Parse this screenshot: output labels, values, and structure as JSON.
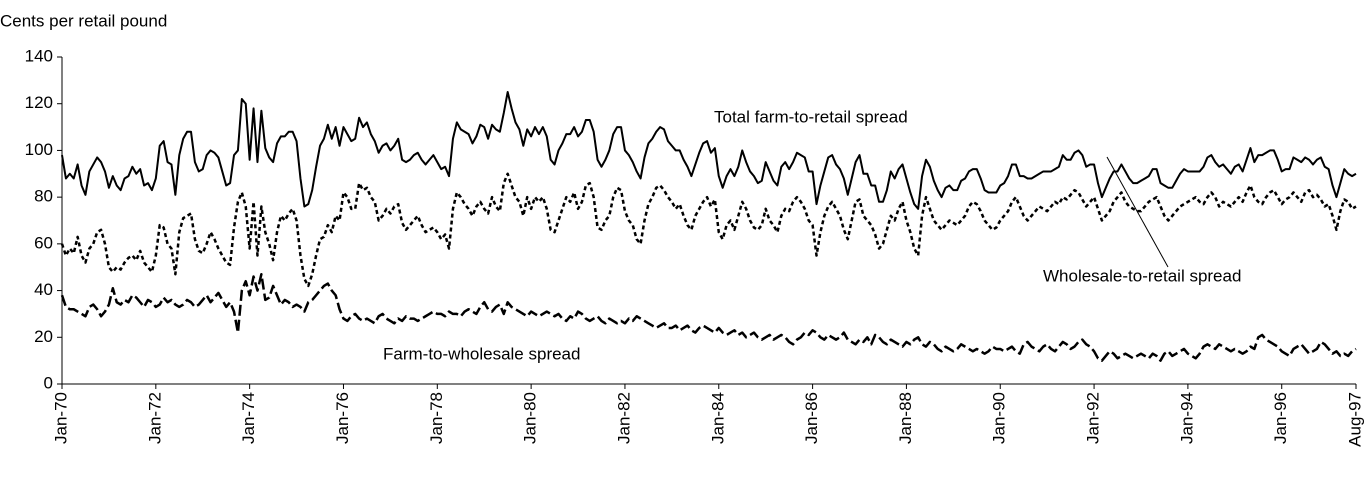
{
  "chart_data": {
    "type": "line",
    "y_label": "Cents per retail pound",
    "categories": [
      "Jan-70",
      null,
      null,
      null,
      null,
      null,
      null,
      null,
      null,
      null,
      null,
      null,
      null,
      null,
      null,
      null,
      null,
      null,
      null,
      null,
      null,
      null,
      null,
      null,
      "Jan-72",
      null,
      null,
      null,
      null,
      null,
      null,
      null,
      null,
      null,
      null,
      null,
      null,
      null,
      null,
      null,
      null,
      null,
      null,
      null,
      null,
      null,
      null,
      null,
      "Jan-74",
      null,
      null,
      null,
      null,
      null,
      null,
      null,
      null,
      null,
      null,
      null,
      null,
      null,
      null,
      null,
      null,
      null,
      null,
      null,
      null,
      null,
      null,
      null,
      "Jan-76",
      null,
      null,
      null,
      null,
      null,
      null,
      null,
      null,
      null,
      null,
      null,
      null,
      null,
      null,
      null,
      null,
      null,
      null,
      null,
      null,
      null,
      null,
      null,
      "Jan-78",
      null,
      null,
      null,
      null,
      null,
      null,
      null,
      null,
      null,
      null,
      null,
      null,
      null,
      null,
      null,
      null,
      null,
      null,
      null,
      null,
      null,
      null,
      null,
      "Jan-80",
      null,
      null,
      null,
      null,
      null,
      null,
      null,
      null,
      null,
      null,
      null,
      null,
      null,
      null,
      null,
      null,
      null,
      null,
      null,
      null,
      null,
      null,
      null,
      "Jan-82",
      null,
      null,
      null,
      null,
      null,
      null,
      null,
      null,
      null,
      null,
      null,
      null,
      null,
      null,
      null,
      null,
      null,
      null,
      null,
      null,
      null,
      null,
      null,
      "Jan-84",
      null,
      null,
      null,
      null,
      null,
      null,
      null,
      null,
      null,
      null,
      null,
      null,
      null,
      null,
      null,
      null,
      null,
      null,
      null,
      null,
      null,
      null,
      null,
      "Jan-86",
      null,
      null,
      null,
      null,
      null,
      null,
      null,
      null,
      null,
      null,
      null,
      null,
      null,
      null,
      null,
      null,
      null,
      null,
      null,
      null,
      null,
      null,
      null,
      "Jan-88",
      null,
      null,
      null,
      null,
      null,
      null,
      null,
      null,
      null,
      null,
      null,
      null,
      null,
      null,
      null,
      null,
      null,
      null,
      null,
      null,
      null,
      null,
      null,
      "Jan-90",
      null,
      null,
      null,
      null,
      null,
      null,
      null,
      null,
      null,
      null,
      null,
      null,
      null,
      null,
      null,
      null,
      null,
      null,
      null,
      null,
      null,
      null,
      null,
      "Jan-92",
      null,
      null,
      null,
      null,
      null,
      null,
      null,
      null,
      null,
      null,
      null,
      null,
      null,
      null,
      null,
      null,
      null,
      null,
      null,
      null,
      null,
      null,
      null,
      "Jan-94",
      null,
      null,
      null,
      null,
      null,
      null,
      null,
      null,
      null,
      null,
      null,
      null,
      null,
      null,
      null,
      null,
      null,
      null,
      null,
      null,
      null,
      null,
      null,
      "Jan-96",
      null,
      null,
      null,
      null,
      null,
      null,
      null,
      null,
      null,
      null,
      null,
      null,
      null,
      null,
      null,
      null,
      null,
      null,
      "Aug-97"
    ],
    "ylim": [
      0,
      140
    ],
    "yticks": [
      0,
      20,
      40,
      60,
      80,
      100,
      120,
      140
    ],
    "series": [
      {
        "name": "Total farm-to-retail spread",
        "color": "#000000",
        "style": "solid",
        "values": [
          98,
          88,
          90,
          88,
          94,
          85,
          81,
          91,
          94,
          97,
          95,
          91,
          84,
          89,
          85,
          83,
          88,
          89,
          93,
          90,
          92,
          85,
          86,
          83,
          88,
          102,
          104,
          95,
          94,
          81,
          98,
          105,
          108,
          108,
          95,
          91,
          92,
          98,
          100,
          99,
          97,
          91,
          85,
          86,
          98,
          100,
          122,
          120,
          96,
          118,
          95,
          117,
          101,
          97,
          95,
          103,
          106,
          106,
          108,
          108,
          104,
          88,
          76,
          77,
          83,
          93,
          102,
          105,
          111,
          105,
          110,
          102,
          110,
          107,
          104,
          105,
          114,
          110,
          112,
          107,
          104,
          99,
          102,
          103,
          100,
          102,
          105,
          96,
          95,
          96,
          98,
          99,
          96,
          94,
          96,
          98,
          95,
          92,
          93,
          89,
          105,
          112,
          109,
          108,
          107,
          103,
          106,
          111,
          110,
          105,
          111,
          109,
          108,
          116,
          125,
          118,
          112,
          109,
          102,
          109,
          106,
          110,
          107,
          110,
          106,
          96,
          94,
          100,
          103,
          107,
          107,
          110,
          106,
          108,
          113,
          113,
          108,
          96,
          93,
          96,
          100,
          107,
          110,
          110,
          100,
          98,
          95,
          91,
          88,
          97,
          103,
          105,
          108,
          110,
          109,
          104,
          102,
          100,
          100,
          96,
          93,
          89,
          94,
          99,
          103,
          104,
          99,
          101,
          89,
          84,
          89,
          92,
          89,
          93,
          100,
          95,
          91,
          89,
          86,
          87,
          95,
          91,
          87,
          85,
          93,
          95,
          92,
          95,
          99,
          98,
          97,
          91,
          91,
          77,
          85,
          91,
          97,
          98,
          94,
          92,
          88,
          81,
          88,
          95,
          98,
          90,
          90,
          85,
          85,
          78,
          78,
          83,
          91,
          88,
          92,
          94,
          88,
          82,
          77,
          75,
          89,
          96,
          93,
          87,
          83,
          80,
          84,
          85,
          83,
          83,
          87,
          88,
          91,
          92,
          92,
          88,
          83,
          82,
          82,
          82,
          85,
          86,
          89,
          94,
          94,
          89,
          89,
          88,
          88,
          89,
          90,
          91,
          91,
          91,
          92,
          93,
          98,
          96,
          96,
          99,
          100,
          98,
          93,
          94,
          94,
          86,
          80,
          84,
          88,
          91,
          91,
          94,
          91,
          88,
          86,
          86,
          87,
          88,
          89,
          92,
          92,
          86,
          85,
          84,
          84,
          87,
          90,
          92,
          91,
          91,
          91,
          91,
          93,
          97,
          98,
          95,
          93,
          94,
          92,
          90,
          93,
          94,
          91,
          96,
          101,
          95,
          98,
          98,
          99,
          100,
          100,
          96,
          91,
          92,
          92,
          97,
          96,
          95,
          97,
          96,
          94,
          96,
          97,
          93,
          92,
          85,
          80,
          86,
          92,
          90,
          89,
          90
        ]
      },
      {
        "name": "Wholesale-to-retail spread",
        "color": "#000000",
        "style": "dotted",
        "values": [
          60,
          55,
          58,
          56,
          63,
          55,
          52,
          58,
          60,
          65,
          66,
          60,
          50,
          48,
          50,
          49,
          52,
          54,
          55,
          53,
          57,
          52,
          50,
          48,
          55,
          68,
          67,
          60,
          58,
          47,
          65,
          71,
          72,
          73,
          62,
          57,
          56,
          60,
          65,
          62,
          58,
          55,
          52,
          51,
          67,
          78,
          82,
          76,
          58,
          78,
          55,
          76,
          65,
          60,
          53,
          65,
          72,
          70,
          73,
          75,
          70,
          55,
          45,
          42,
          47,
          55,
          62,
          63,
          68,
          65,
          72,
          70,
          82,
          80,
          75,
          75,
          86,
          83,
          84,
          80,
          78,
          70,
          72,
          75,
          73,
          76,
          77,
          69,
          66,
          68,
          70,
          72,
          68,
          65,
          66,
          67,
          65,
          62,
          64,
          58,
          75,
          82,
          80,
          77,
          75,
          72,
          76,
          78,
          75,
          73,
          80,
          76,
          74,
          86,
          90,
          85,
          80,
          78,
          72,
          80,
          75,
          80,
          78,
          80,
          75,
          66,
          65,
          70,
          75,
          80,
          78,
          82,
          75,
          78,
          85,
          86,
          80,
          67,
          66,
          70,
          72,
          80,
          84,
          83,
          74,
          70,
          68,
          62,
          60,
          70,
          77,
          80,
          84,
          85,
          83,
          80,
          78,
          75,
          77,
          72,
          68,
          66,
          72,
          75,
          78,
          80,
          76,
          79,
          65,
          62,
          68,
          70,
          66,
          72,
          78,
          75,
          70,
          67,
          66,
          68,
          75,
          70,
          68,
          65,
          72,
          75,
          74,
          78,
          80,
          78,
          75,
          70,
          68,
          55,
          65,
          72,
          76,
          78,
          75,
          72,
          66,
          62,
          70,
          78,
          79,
          72,
          70,
          68,
          64,
          58,
          60,
          66,
          72,
          70,
          75,
          78,
          70,
          65,
          58,
          55,
          72,
          80,
          75,
          70,
          68,
          66,
          68,
          70,
          69,
          68,
          70,
          72,
          76,
          78,
          77,
          74,
          70,
          68,
          66,
          67,
          70,
          72,
          74,
          78,
          80,
          76,
          72,
          70,
          72,
          74,
          76,
          75,
          74,
          76,
          78,
          77,
          80,
          79,
          81,
          83,
          82,
          79,
          76,
          78,
          80,
          75,
          70,
          72,
          74,
          78,
          80,
          82,
          78,
          76,
          75,
          74,
          74,
          76,
          78,
          79,
          80,
          76,
          72,
          70,
          72,
          74,
          76,
          77,
          78,
          79,
          80,
          78,
          77,
          80,
          82,
          80,
          76,
          78,
          77,
          76,
          78,
          80,
          78,
          82,
          85,
          80,
          78,
          77,
          80,
          82,
          83,
          80,
          77,
          79,
          80,
          82,
          80,
          78,
          82,
          83,
          80,
          81,
          79,
          76,
          77,
          72,
          66,
          74,
          79,
          78,
          75,
          76
        ]
      },
      {
        "name": "Farm-to-wholesale spread",
        "color": "#000000",
        "style": "dashed",
        "values": [
          38,
          33,
          32,
          32,
          31,
          30,
          29,
          33,
          34,
          32,
          29,
          31,
          34,
          41,
          35,
          34,
          36,
          35,
          38,
          37,
          35,
          33,
          36,
          35,
          33,
          34,
          37,
          35,
          36,
          34,
          33,
          34,
          36,
          35,
          33,
          34,
          36,
          38,
          35,
          37,
          39,
          36,
          33,
          35,
          31,
          22,
          40,
          44,
          38,
          46,
          40,
          47,
          36,
          37,
          42,
          38,
          34,
          36,
          35,
          33,
          34,
          33,
          31,
          35,
          36,
          38,
          40,
          42,
          43,
          40,
          38,
          32,
          28,
          27,
          29,
          30,
          28,
          27,
          28,
          27,
          26,
          29,
          30,
          28,
          27,
          26,
          28,
          27,
          29,
          28,
          28,
          27,
          28,
          29,
          30,
          31,
          30,
          30,
          29,
          31,
          30,
          30,
          29,
          31,
          32,
          31,
          30,
          33,
          35,
          32,
          31,
          33,
          34,
          30,
          35,
          33,
          32,
          31,
          30,
          29,
          31,
          30,
          29,
          30,
          31,
          30,
          29,
          30,
          28,
          27,
          29,
          28,
          31,
          30,
          28,
          27,
          28,
          29,
          27,
          26,
          28,
          27,
          26,
          27,
          26,
          28,
          27,
          29,
          28,
          27,
          26,
          25,
          24,
          25,
          26,
          24,
          24,
          25,
          23,
          24,
          25,
          23,
          22,
          24,
          25,
          24,
          23,
          22,
          24,
          22,
          21,
          22,
          23,
          21,
          22,
          20,
          21,
          22,
          20,
          19,
          20,
          21,
          19,
          20,
          21,
          20,
          18,
          17,
          19,
          20,
          22,
          21,
          23,
          22,
          20,
          19,
          21,
          20,
          19,
          20,
          22,
          19,
          18,
          17,
          19,
          18,
          20,
          17,
          21,
          20,
          18,
          17,
          19,
          18,
          17,
          16,
          18,
          17,
          19,
          20,
          17,
          16,
          18,
          17,
          15,
          14,
          16,
          15,
          14,
          15,
          17,
          16,
          15,
          14,
          15,
          14,
          13,
          14,
          16,
          15,
          15,
          14,
          15,
          16,
          14,
          13,
          17,
          18,
          16,
          15,
          14,
          16,
          17,
          15,
          14,
          16,
          18,
          17,
          15,
          16,
          18,
          19,
          17,
          16,
          14,
          11,
          10,
          12,
          14,
          13,
          11,
          12,
          13,
          12,
          11,
          12,
          13,
          12,
          11,
          13,
          12,
          10,
          13,
          14,
          12,
          13,
          14,
          15,
          13,
          12,
          11,
          13,
          16,
          17,
          16,
          15,
          17,
          16,
          15,
          14,
          15,
          14,
          13,
          14,
          16,
          15,
          20,
          21,
          19,
          18,
          17,
          16,
          14,
          13,
          12,
          15,
          16,
          17,
          15,
          13,
          14,
          15,
          18,
          17,
          15,
          13,
          14,
          12,
          13,
          12,
          14,
          15
        ]
      }
    ]
  }
}
